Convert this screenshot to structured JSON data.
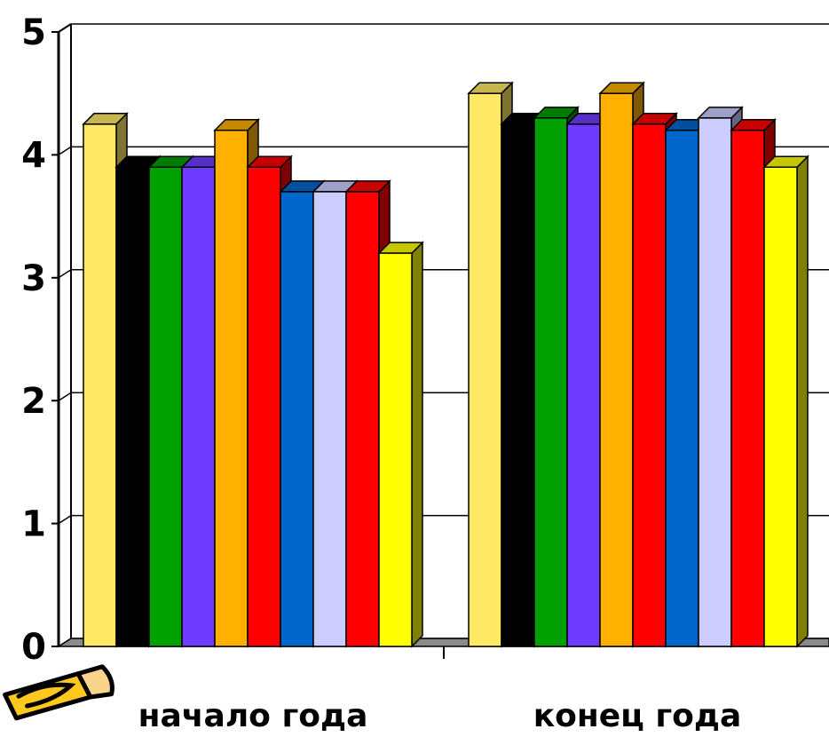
{
  "chart_data": {
    "type": "bar",
    "three_d": true,
    "categories": [
      "начало года",
      "конец года"
    ],
    "series": [
      {
        "color": "#FFE866",
        "values": [
          4.25,
          4.5
        ]
      },
      {
        "color": "#000000",
        "values": [
          3.9,
          4.25
        ]
      },
      {
        "color": "#00A000",
        "values": [
          3.9,
          4.3
        ]
      },
      {
        "color": "#6E3CFF",
        "values": [
          3.9,
          4.25
        ]
      },
      {
        "color": "#FFB000",
        "values": [
          4.2,
          4.5
        ]
      },
      {
        "color": "#FF0000",
        "values": [
          3.9,
          4.25
        ]
      },
      {
        "color": "#0066CC",
        "values": [
          3.7,
          4.2
        ]
      },
      {
        "color": "#CCCCFF",
        "values": [
          3.7,
          4.3
        ]
      },
      {
        "color": "#FF0000",
        "values": [
          3.7,
          4.2
        ]
      },
      {
        "color": "#FFFF00",
        "values": [
          3.2,
          3.9
        ]
      }
    ],
    "y_ticks": [
      "0",
      "1",
      "2",
      "3",
      "4",
      "5"
    ],
    "ylim": [
      0,
      5
    ],
    "grid": true,
    "legend": "none",
    "title": "",
    "xlabel": "",
    "ylabel": ""
  },
  "decor": {
    "pencil_icon": "pencil-icon"
  }
}
